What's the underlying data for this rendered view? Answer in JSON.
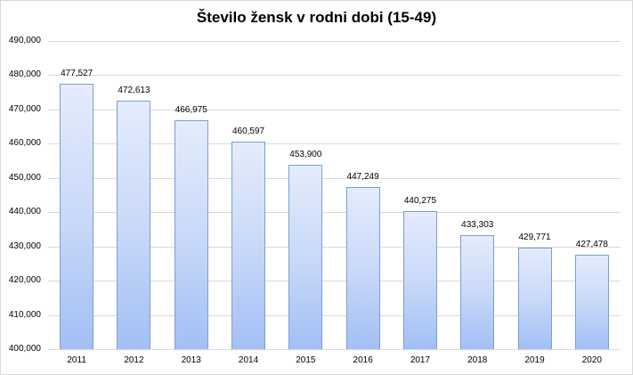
{
  "chart_data": {
    "type": "bar",
    "title": "Število žensk v rodni dobi (15-49)",
    "xlabel": "",
    "ylabel": "",
    "categories": [
      "2011",
      "2012",
      "2013",
      "2014",
      "2015",
      "2016",
      "2017",
      "2018",
      "2019",
      "2020"
    ],
    "values": [
      477527,
      472613,
      466975,
      460597,
      453900,
      447249,
      440275,
      433303,
      429771,
      427478
    ],
    "data_labels": [
      "477,527",
      "472,613",
      "466,975",
      "460,597",
      "453,900",
      "447,249",
      "440,275",
      "433,303",
      "429,771",
      "427,478"
    ],
    "ylim": [
      400000,
      490000
    ],
    "yticks": [
      "490,000",
      "480,000",
      "470,000",
      "460,000",
      "450,000",
      "440,000",
      "430,000",
      "420,000",
      "410,000",
      "400,000"
    ],
    "grid": true,
    "legend": null,
    "colors": {
      "bar_fill_top": "#e4ecfc",
      "bar_fill_bottom": "#a3bff5",
      "bar_border": "#7a9fd4",
      "grid": "#d9d9d9"
    }
  }
}
